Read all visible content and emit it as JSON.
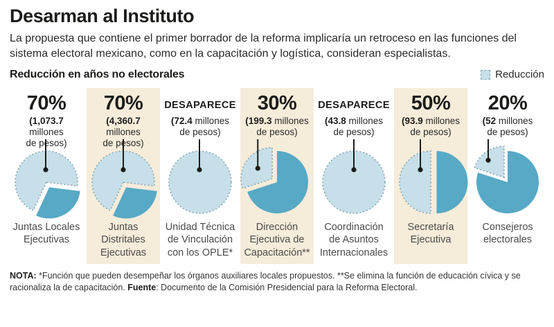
{
  "header": {
    "title": "Desarman al Instituto",
    "subtitle": "La propuesta que contiene el primer borrador de la reforma implicaría un retroceso en las funciones del sistema electoral mexicano, como en la capacitación y logística, consideran especialistas."
  },
  "section": {
    "label": "Reducción en años no electorales"
  },
  "legend": {
    "label": "Reducción"
  },
  "colors": {
    "reduction_fill": "#c6dfe8",
    "reduction_border": "#85a8b5",
    "remainder_fill": "#57a9c5",
    "panel_beige": "#f6ecda",
    "pointer": "#1c1c1a"
  },
  "chart_data": {
    "type": "pie",
    "title": "Reducción en años no electorales",
    "legend": [
      "Reducción"
    ],
    "unit_word": "millones",
    "unit_word2": "de pesos)",
    "series": [
      {
        "label": "Juntas Locales Ejecutivas",
        "reduction_label": "70%",
        "reduction_pct": 70,
        "amount": "1,073.7",
        "highlighted": false
      },
      {
        "label": "Juntas Distritales Ejecutivas",
        "reduction_label": "70%",
        "reduction_pct": 70,
        "amount": "4,360.7",
        "highlighted": true
      },
      {
        "label": "Unidad Técnica de Vinculación con los OPLE*",
        "reduction_label": "DESAPARECE",
        "reduction_pct": 100,
        "amount": "72.4",
        "highlighted": false
      },
      {
        "label": "Dirección Ejecutiva de Capacitación**",
        "reduction_label": "30%",
        "reduction_pct": 30,
        "amount": "199.3",
        "highlighted": true
      },
      {
        "label": "Coordinación de Asuntos Internacionales",
        "reduction_label": "DESAPARECE",
        "reduction_pct": 100,
        "amount": "43.8",
        "highlighted": false
      },
      {
        "label": "Secretaría Ejecutiva",
        "reduction_label": "50%",
        "reduction_pct": 50,
        "amount": "93.9",
        "highlighted": true
      },
      {
        "label": "Consejeros electorales",
        "reduction_label": "20%",
        "reduction_pct": 20,
        "amount": "52",
        "highlighted": false
      }
    ]
  },
  "footer": {
    "nota_label": "NOTA:",
    "nota_text": " *Función que pueden desempeñar los órganos auxiliares locales propuestos. **Se elimina la función de educación cívica y se racionaliza la de capacitación. ",
    "fuente_label": "Fuente",
    "fuente_text": ": Documento de la Comisión Presidencial para la Reforma Electoral."
  }
}
